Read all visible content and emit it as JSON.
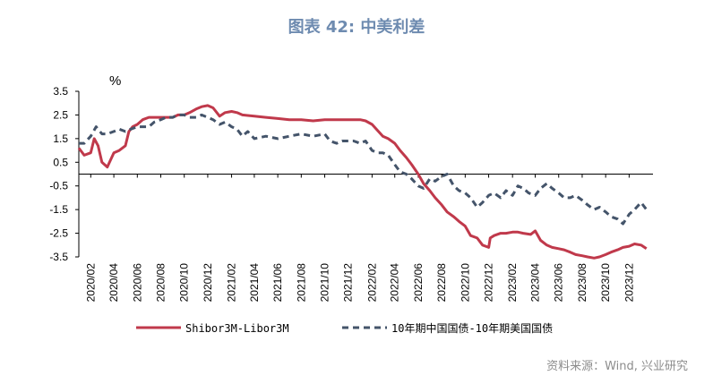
{
  "title": "图表 42: 中美利差",
  "source": "资料来源：Wind, 兴业研究",
  "colors": {
    "shibor": "#c0394b",
    "bond": "#44546a",
    "title": "#6e8bb0",
    "axis": "#000000"
  },
  "chart_data": {
    "type": "line",
    "title": "图表 42: 中美利差",
    "ylabel": "%",
    "ylim": [
      -3.5,
      3.5
    ],
    "yticks": [
      3.5,
      2.5,
      1.5,
      0.5,
      -0.5,
      -1.5,
      -2.5,
      -3.5
    ],
    "xlim": [
      "2020-01-01",
      "2024-02-01"
    ],
    "xticks": [
      "2020-02-01",
      "2020-04-01",
      "2020-06-01",
      "2020-08-01",
      "2020-10-01",
      "2020-12-01",
      "2021-02-01",
      "2021-04-01",
      "2021-06-01",
      "2021-08-01",
      "2021-10-01",
      "2021-12-01",
      "2022-02-01",
      "2022-04-01",
      "2022-06-01",
      "2022-08-01",
      "2022-10-01",
      "2022-12-01",
      "2023-02-01",
      "2023-04-01",
      "2023-06-01",
      "2023-08-01",
      "2023-10-01",
      "2023-12-01"
    ],
    "xtick_labels": [
      "2020/02",
      "2020/04",
      "2020/06",
      "2020/08",
      "2020/10",
      "2020/12",
      "2021/02",
      "2021/04",
      "2021/06",
      "2021/08",
      "2021/10",
      "2021/12",
      "2022/02",
      "2022/04",
      "2022/06",
      "2022/08",
      "2022/10",
      "2022/12",
      "2023/02",
      "2023/04",
      "2023/06",
      "2023/08",
      "2023/10",
      "2023/12"
    ],
    "legend_position": "bottom",
    "series": [
      {
        "name": "Shibor3M-Libor3M",
        "color": "#c0394b",
        "style": "solid",
        "x": [
          "2020-01-01",
          "2020-01-15",
          "2020-02-01",
          "2020-02-10",
          "2020-02-20",
          "2020-03-01",
          "2020-03-15",
          "2020-04-01",
          "2020-04-15",
          "2020-05-01",
          "2020-05-10",
          "2020-05-20",
          "2020-06-01",
          "2020-06-15",
          "2020-07-01",
          "2020-07-15",
          "2020-08-01",
          "2020-08-15",
          "2020-09-01",
          "2020-09-15",
          "2020-10-01",
          "2020-10-15",
          "2020-11-01",
          "2020-11-15",
          "2020-12-01",
          "2020-12-15",
          "2021-01-01",
          "2021-01-15",
          "2021-02-01",
          "2021-02-15",
          "2021-03-01",
          "2021-04-01",
          "2021-05-01",
          "2021-06-01",
          "2021-07-01",
          "2021-08-01",
          "2021-09-01",
          "2021-10-01",
          "2021-11-01",
          "2021-12-01",
          "2022-01-01",
          "2022-01-15",
          "2022-02-01",
          "2022-02-15",
          "2022-03-01",
          "2022-03-15",
          "2022-04-01",
          "2022-04-15",
          "2022-05-01",
          "2022-05-15",
          "2022-06-01",
          "2022-06-15",
          "2022-07-01",
          "2022-07-15",
          "2022-08-01",
          "2022-08-15",
          "2022-09-01",
          "2022-09-15",
          "2022-10-01",
          "2022-10-15",
          "2022-11-01",
          "2022-11-15",
          "2022-12-01",
          "2022-12-05",
          "2022-12-15",
          "2023-01-01",
          "2023-01-15",
          "2023-02-01",
          "2023-02-15",
          "2023-03-01",
          "2023-03-20",
          "2023-04-01",
          "2023-04-15",
          "2023-05-01",
          "2023-05-15",
          "2023-06-01",
          "2023-06-15",
          "2023-07-01",
          "2023-07-15",
          "2023-08-01",
          "2023-08-15",
          "2023-09-01",
          "2023-09-15",
          "2023-10-01",
          "2023-10-15",
          "2023-11-01",
          "2023-11-15",
          "2023-12-01",
          "2023-12-15",
          "2024-01-01",
          "2024-01-15"
        ],
        "y": [
          1.1,
          0.8,
          0.9,
          1.5,
          1.2,
          0.5,
          0.3,
          0.9,
          1.0,
          1.2,
          1.8,
          2.0,
          2.1,
          2.3,
          2.4,
          2.4,
          2.4,
          2.4,
          2.4,
          2.5,
          2.5,
          2.6,
          2.75,
          2.85,
          2.9,
          2.8,
          2.45,
          2.6,
          2.65,
          2.6,
          2.5,
          2.45,
          2.4,
          2.35,
          2.3,
          2.3,
          2.25,
          2.3,
          2.3,
          2.3,
          2.3,
          2.25,
          2.1,
          1.85,
          1.6,
          1.5,
          1.3,
          1.0,
          0.7,
          0.4,
          0.0,
          -0.4,
          -0.7,
          -1.0,
          -1.3,
          -1.6,
          -1.8,
          -2.0,
          -2.2,
          -2.6,
          -2.7,
          -3.0,
          -3.1,
          -2.7,
          -2.6,
          -2.5,
          -2.5,
          -2.45,
          -2.45,
          -2.5,
          -2.55,
          -2.4,
          -2.8,
          -3.0,
          -3.1,
          -3.15,
          -3.2,
          -3.3,
          -3.4,
          -3.45,
          -3.5,
          -3.55,
          -3.5,
          -3.4,
          -3.3,
          -3.2,
          -3.1,
          -3.05,
          -2.95,
          -3.0,
          -3.15
        ]
      },
      {
        "name": "10年期中国国债-10年期美国国债",
        "color": "#44546a",
        "style": "dashed",
        "x": [
          "2020-01-01",
          "2020-01-15",
          "2020-02-01",
          "2020-02-15",
          "2020-03-01",
          "2020-03-15",
          "2020-04-01",
          "2020-04-15",
          "2020-05-01",
          "2020-05-15",
          "2020-06-01",
          "2020-06-15",
          "2020-07-01",
          "2020-07-15",
          "2020-08-01",
          "2020-08-15",
          "2020-09-01",
          "2020-09-15",
          "2020-10-01",
          "2020-10-15",
          "2020-11-01",
          "2020-11-15",
          "2020-12-01",
          "2020-12-15",
          "2021-01-01",
          "2021-01-15",
          "2021-02-01",
          "2021-02-15",
          "2021-03-01",
          "2021-03-15",
          "2021-04-01",
          "2021-05-01",
          "2021-06-01",
          "2021-07-01",
          "2021-08-01",
          "2021-09-01",
          "2021-10-01",
          "2021-10-15",
          "2021-11-01",
          "2021-11-15",
          "2021-12-01",
          "2021-12-15",
          "2022-01-01",
          "2022-01-15",
          "2022-02-01",
          "2022-02-15",
          "2022-03-01",
          "2022-03-15",
          "2022-04-01",
          "2022-04-15",
          "2022-05-01",
          "2022-05-15",
          "2022-06-01",
          "2022-06-15",
          "2022-07-01",
          "2022-07-15",
          "2022-08-01",
          "2022-08-15",
          "2022-09-01",
          "2022-09-15",
          "2022-10-01",
          "2022-10-15",
          "2022-11-01",
          "2022-11-15",
          "2022-12-01",
          "2022-12-15",
          "2023-01-01",
          "2023-01-15",
          "2023-02-01",
          "2023-02-15",
          "2023-03-01",
          "2023-03-15",
          "2023-04-01",
          "2023-04-15",
          "2023-05-01",
          "2023-05-15",
          "2023-06-01",
          "2023-06-15",
          "2023-07-01",
          "2023-07-15",
          "2023-08-01",
          "2023-08-15",
          "2023-09-01",
          "2023-09-15",
          "2023-10-01",
          "2023-10-15",
          "2023-11-01",
          "2023-11-15",
          "2023-12-01",
          "2023-12-15",
          "2024-01-01",
          "2024-01-15"
        ],
        "y": [
          1.3,
          1.3,
          1.6,
          2.0,
          1.7,
          1.7,
          1.8,
          1.9,
          1.8,
          1.9,
          2.0,
          2.0,
          2.0,
          2.2,
          2.3,
          2.4,
          2.4,
          2.5,
          2.5,
          2.4,
          2.4,
          2.5,
          2.4,
          2.3,
          2.1,
          2.2,
          2.0,
          1.9,
          1.6,
          1.8,
          1.5,
          1.6,
          1.5,
          1.6,
          1.7,
          1.6,
          1.7,
          1.4,
          1.3,
          1.4,
          1.4,
          1.4,
          1.3,
          1.4,
          1.0,
          0.9,
          0.9,
          0.8,
          0.4,
          0.1,
          0.0,
          -0.2,
          -0.5,
          -0.6,
          -0.2,
          -0.3,
          -0.1,
          0.0,
          -0.5,
          -0.7,
          -0.8,
          -1.0,
          -1.4,
          -1.2,
          -0.9,
          -0.8,
          -1.0,
          -0.7,
          -0.9,
          -0.5,
          -0.6,
          -0.8,
          -0.9,
          -0.6,
          -0.4,
          -0.6,
          -0.8,
          -1.0,
          -1.0,
          -0.9,
          -1.1,
          -1.3,
          -1.5,
          -1.4,
          -1.6,
          -1.8,
          -1.9,
          -2.1,
          -1.7,
          -1.5,
          -1.2,
          -1.5
        ]
      }
    ]
  }
}
